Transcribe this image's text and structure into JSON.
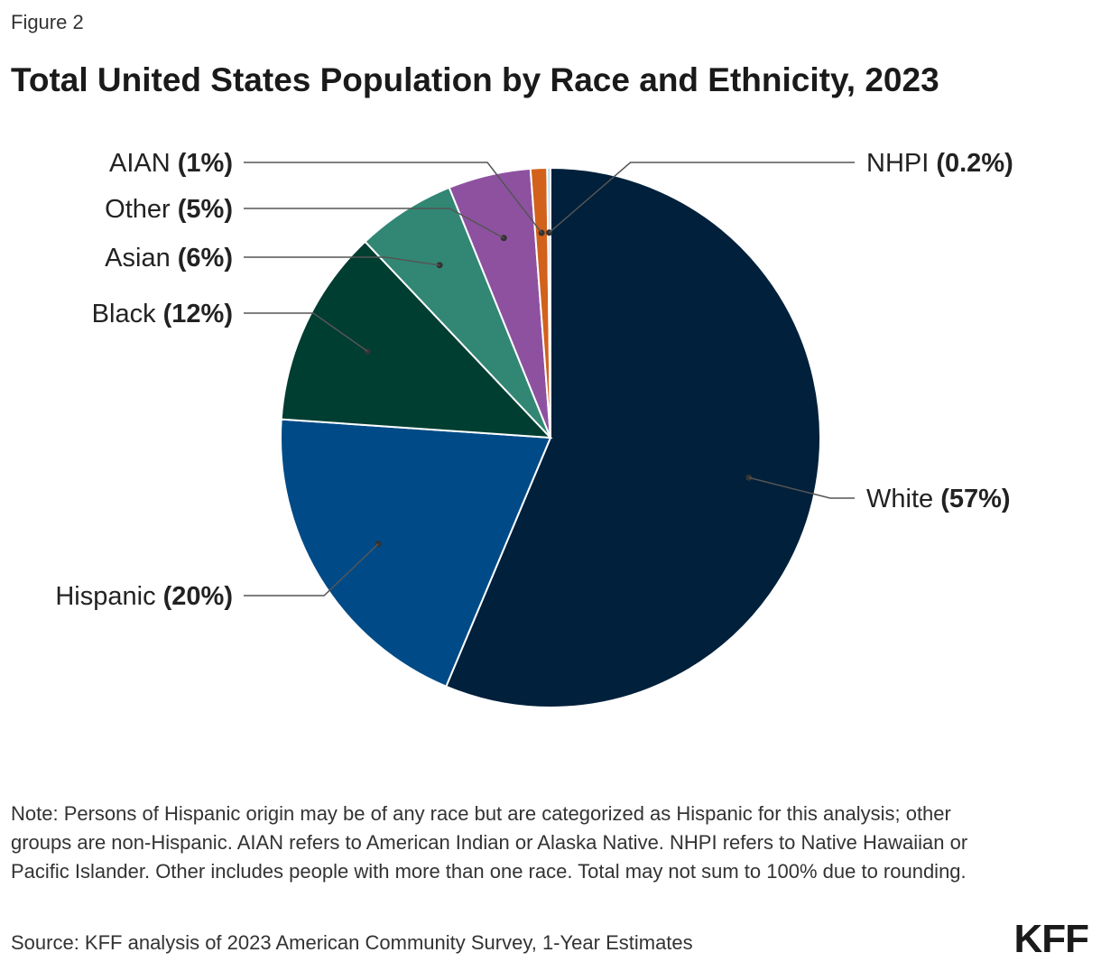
{
  "figure_label": "Figure 2",
  "title": "Total United States Population by Race and Ethnicity, 2023",
  "note": "Note: Persons of Hispanic origin may be of any race but are categorized as Hispanic for this analysis; other groups are non-Hispanic. AIAN refers to American Indian or Alaska Native. NHPI refers to Native Hawaiian or Pacific Islander. Other includes people with more than one race. Total may not sum to 100% due to rounding.",
  "source": "Source: KFF analysis of 2023 American Community Survey, 1-Year Estimates",
  "logo": "KFF",
  "chart_data": {
    "type": "pie",
    "title": "Total United States Population by Race and Ethnicity, 2023",
    "slices": [
      {
        "label": "White",
        "value": 57,
        "display": "57%",
        "color": "#00203b"
      },
      {
        "label": "Hispanic",
        "value": 20,
        "display": "20%",
        "color": "#004b87"
      },
      {
        "label": "Black",
        "value": 12,
        "display": "12%",
        "color": "#003e31"
      },
      {
        "label": "Asian",
        "value": 6,
        "display": "6%",
        "color": "#318774"
      },
      {
        "label": "Other",
        "value": 5,
        "display": "5%",
        "color": "#8e51a0"
      },
      {
        "label": "AIAN",
        "value": 1,
        "display": "1%",
        "color": "#d2611b"
      },
      {
        "label": "NHPI",
        "value": 0.2,
        "display": "0.2%",
        "color": "#b0d9ee"
      }
    ],
    "start_angle": "12 o'clock",
    "direction": "clockwise",
    "legend": "none (direct labels)"
  }
}
